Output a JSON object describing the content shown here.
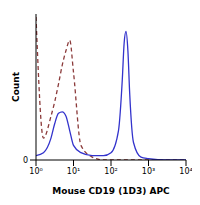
{
  "chart_data": {
    "type": "line",
    "x_label": "Mouse CD19 (1D3) APC",
    "y_label": "Count",
    "log": "x",
    "grid": false,
    "x": [
      1,
      1.58,
      2.51,
      3.16,
      3.98,
      5.01,
      6.31,
      7.94,
      10,
      15.8,
      31.6,
      63.1,
      100,
      158,
      200,
      224,
      251,
      282,
      316,
      398,
      631,
      1000,
      3162,
      10000
    ],
    "series": [
      {
        "color": "#8b3a3a",
        "line_style": "dashed",
        "values": [
          98,
          15,
          30,
          40,
          52,
          65,
          75,
          82,
          60,
          10,
          2,
          0,
          0,
          0,
          0,
          0,
          0,
          0,
          0,
          0,
          0,
          0,
          0,
          0
        ]
      },
      {
        "color": "#3333cc",
        "line_style": "solid",
        "values": [
          3,
          5,
          15,
          25,
          32,
          33,
          30,
          20,
          10,
          5,
          3,
          3,
          5,
          20,
          55,
          80,
          88,
          75,
          45,
          12,
          2,
          1,
          0,
          0
        ]
      }
    ],
    "xlim": [
      1,
      10000
    ],
    "xticks": [
      {
        "value": 1,
        "label": "10⁰"
      },
      {
        "value": 10,
        "label": "10¹"
      },
      {
        "value": 100,
        "label": "10²"
      },
      {
        "value": 1000,
        "label": "10³"
      },
      {
        "value": 10000,
        "label": "10⁴"
      }
    ],
    "ylim": [
      0,
      100
    ],
    "yticks": [
      0
    ]
  }
}
